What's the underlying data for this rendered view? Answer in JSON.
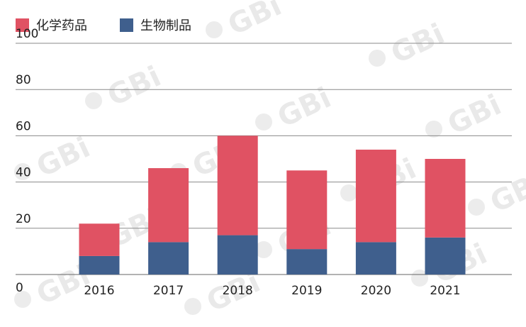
{
  "chart_data": {
    "type": "bar",
    "stacked": true,
    "categories": [
      "2016",
      "2017",
      "2018",
      "2019",
      "2020",
      "2021"
    ],
    "series": [
      {
        "name": "生物制品",
        "color": "#3f5f8d",
        "values": [
          8,
          14,
          17,
          11,
          14,
          16
        ]
      },
      {
        "name": "化学药品",
        "color": "#e05263",
        "values": [
          14,
          32,
          43,
          34,
          40,
          34
        ]
      }
    ],
    "legend_order": [
      1,
      0
    ],
    "legend_placement": "top-left",
    "yticks": [
      "0",
      "20",
      "40",
      "60",
      "80",
      "100"
    ],
    "ylim": [
      0,
      100
    ],
    "grid": true,
    "watermark": "GBi"
  }
}
